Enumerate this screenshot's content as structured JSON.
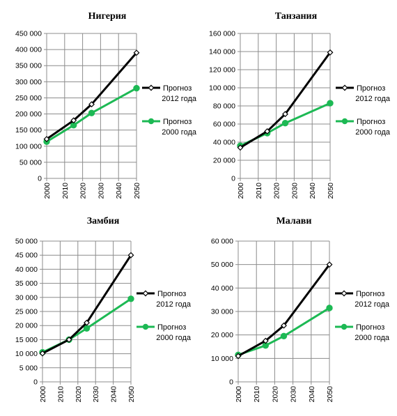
{
  "chart_data": [
    {
      "type": "line",
      "title": "Нигерия",
      "x": [
        2000,
        2015,
        2025,
        2050
      ],
      "xticks": [
        "2000",
        "2010",
        "2020",
        "2030",
        "2040",
        "2050"
      ],
      "yticks": [
        "0",
        "50 000",
        "100 000",
        "150 000",
        "200 000",
        "250 000",
        "300 000",
        "350 000",
        "400 000",
        "450 000"
      ],
      "ylim": [
        0,
        450000
      ],
      "series": [
        {
          "name": "Прогноз 2012 года",
          "name_lines": [
            "Прогноз",
            "2012 года"
          ],
          "color": "#000000",
          "marker": "open-diamond",
          "values": [
            122000,
            180000,
            230000,
            390000
          ]
        },
        {
          "name": "Прогноз 2000 года",
          "name_lines": [
            "Прогноз",
            "2000 года"
          ],
          "color": "#1db954",
          "marker": "filled-circle",
          "values": [
            114000,
            165000,
            203000,
            280000
          ]
        }
      ],
      "grid": true,
      "legend": "right"
    },
    {
      "type": "line",
      "title": "Танзания",
      "x": [
        2000,
        2015,
        2025,
        2050
      ],
      "xticks": [
        "2000",
        "2010",
        "2020",
        "2030",
        "2040",
        "2050"
      ],
      "yticks": [
        "0",
        "20 000",
        "40 000",
        "60 000",
        "80 000",
        "100 000",
        "120 000",
        "140 000",
        "160 000"
      ],
      "ylim": [
        0,
        160000
      ],
      "series": [
        {
          "name": "Прогноз 2012 года",
          "name_lines": [
            "Прогноз",
            "2012 года"
          ],
          "color": "#000000",
          "marker": "open-diamond",
          "values": [
            34000,
            52000,
            71000,
            139000
          ]
        },
        {
          "name": "Прогноз 2000 года",
          "name_lines": [
            "Прогноз",
            "2000 года"
          ],
          "color": "#1db954",
          "marker": "filled-circle",
          "values": [
            36000,
            50000,
            61000,
            83000
          ]
        }
      ],
      "grid": true,
      "legend": "right"
    },
    {
      "type": "line",
      "title": "Замбия",
      "x": [
        2000,
        2015,
        2025,
        2050
      ],
      "xticks": [
        "2000",
        "2010",
        "2020",
        "2030",
        "2040",
        "2050"
      ],
      "yticks": [
        "0",
        "5 000",
        "10 000",
        "15 000",
        "20 000",
        "25 000",
        "30 000",
        "35 000",
        "40 000",
        "45 000",
        "50 000"
      ],
      "ylim": [
        0,
        50000
      ],
      "series": [
        {
          "name": "Прогноз 2012 года",
          "name_lines": [
            "Прогноз",
            "2012 года"
          ],
          "color": "#000000",
          "marker": "open-diamond",
          "values": [
            10100,
            15000,
            21000,
            45000
          ]
        },
        {
          "name": "Прогноз 2000 года",
          "name_lines": [
            "Прогноз",
            "2000 года"
          ],
          "color": "#1db954",
          "marker": "filled-circle",
          "values": [
            10500,
            15000,
            19000,
            29500
          ]
        }
      ],
      "grid": true,
      "legend": "right"
    },
    {
      "type": "line",
      "title": "Малави",
      "x": [
        2000,
        2015,
        2025,
        2050
      ],
      "xticks": [
        "2000",
        "2010",
        "2020",
        "2030",
        "2040",
        "2050"
      ],
      "yticks": [
        "0",
        "10 000",
        "20 000",
        "30 000",
        "40 000",
        "50 000",
        "60 000"
      ],
      "ylim": [
        0,
        60000
      ],
      "series": [
        {
          "name": "Прогноз 2012 года",
          "name_lines": [
            "Прогноз",
            "2012 года"
          ],
          "color": "#000000",
          "marker": "open-diamond",
          "values": [
            11000,
            17500,
            24000,
            50000
          ]
        },
        {
          "name": "Прогноз 2000 года",
          "name_lines": [
            "Прогноз",
            "2000 года"
          ],
          "color": "#1db954",
          "marker": "filled-circle",
          "values": [
            11500,
            15500,
            19500,
            31500
          ]
        }
      ],
      "grid": true,
      "legend": "right"
    }
  ]
}
